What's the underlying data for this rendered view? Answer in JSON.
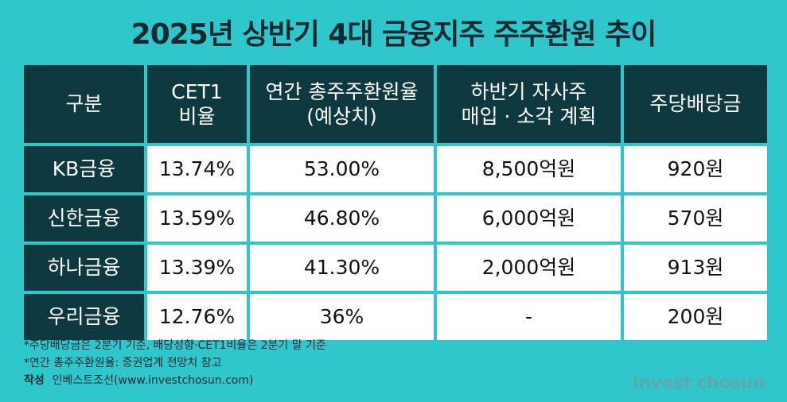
{
  "title": "2025년 상반기 4대 금융지주 주주환원 추이",
  "chart_data": {
    "type": "table",
    "title": "2025년 상반기 4대 금융지주 주주환원 추이",
    "columns": [
      {
        "line1": "구분",
        "line2": ""
      },
      {
        "line1": "CET1",
        "line2": "비율"
      },
      {
        "line1": "연간 총주주환원율",
        "line2": "(예상치)"
      },
      {
        "line1": "하반기 자사주",
        "line2": "매입 · 소각 계획"
      },
      {
        "line1": "주당배당금",
        "line2": ""
      }
    ],
    "rows": [
      {
        "name": "KB금융",
        "cet1": "13.74%",
        "tsr": "53.00%",
        "buyback": "8,500억원",
        "dps": "920원"
      },
      {
        "name": "신한금융",
        "cet1": "13.59%",
        "tsr": "46.80%",
        "buyback": "6,000억원",
        "dps": "570원"
      },
      {
        "name": "하나금융",
        "cet1": "13.39%",
        "tsr": "41.30%",
        "buyback": "2,000억원",
        "dps": "913원"
      },
      {
        "name": "우리금융",
        "cet1": "12.76%",
        "tsr": "36%",
        "buyback": "-",
        "dps": "200원"
      }
    ]
  },
  "notes": [
    "*주당배당금은 2분기 기준, 배당성향·CET1비율은 2분기 말 기준",
    "*연간 총주주환원율: 증권업계 전망치 참고"
  ],
  "credit": {
    "label": "작성",
    "value": "인베스트조선(www.investchosun.com)"
  },
  "logo": {
    "text": "Invest chosun"
  },
  "colors": {
    "background": "#2fc7cb",
    "header": "#0f3940",
    "cell": "#ffffff"
  }
}
